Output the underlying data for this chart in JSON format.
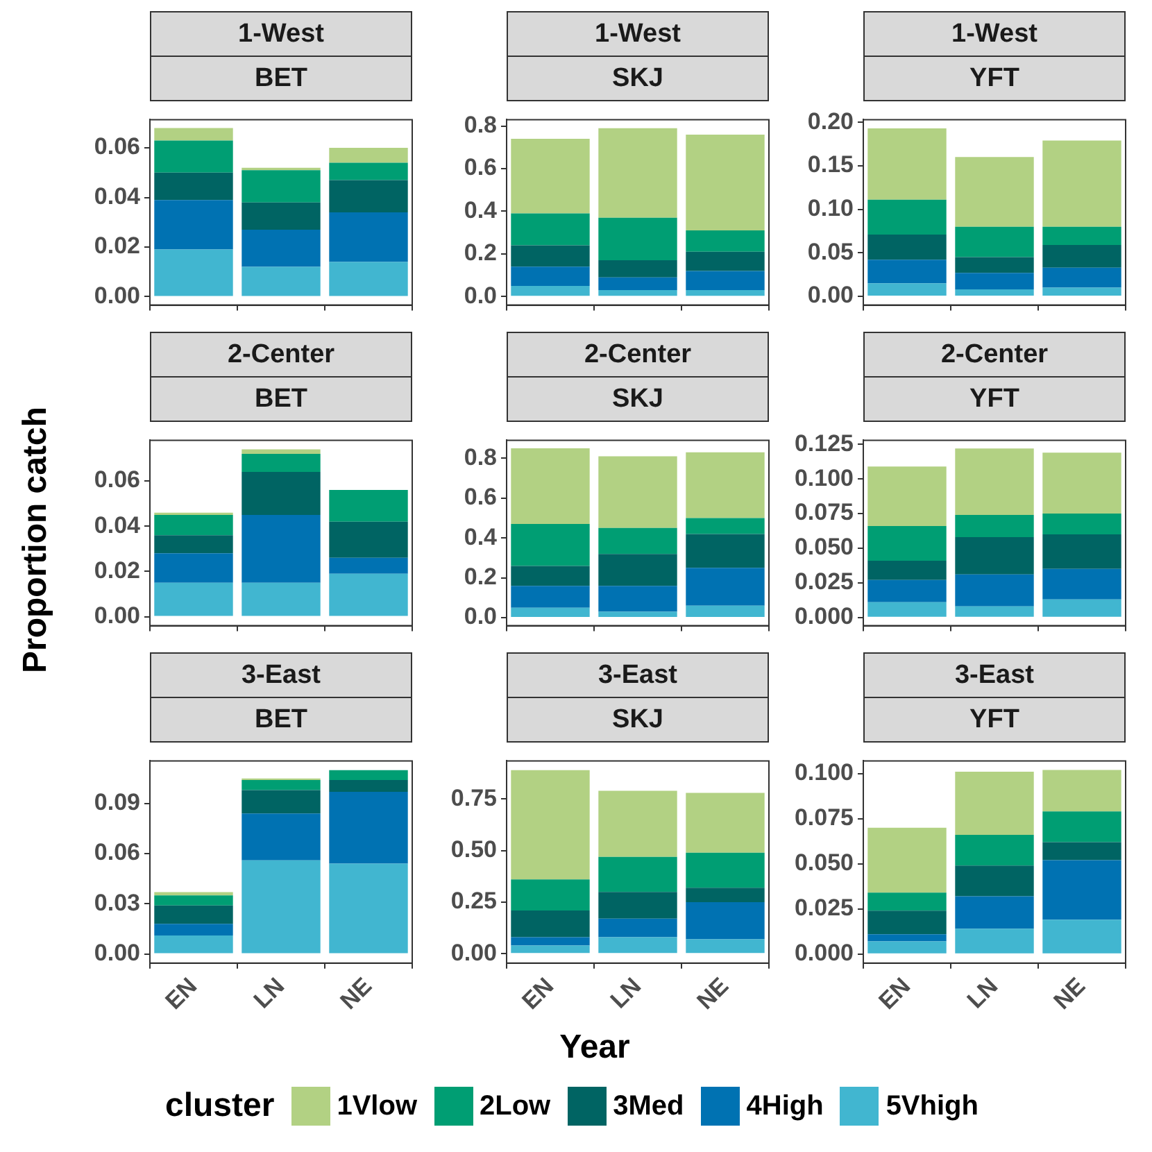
{
  "chart_data": [
    {
      "type": "bar",
      "stacked": true,
      "grid": false,
      "tick_labels": "y",
      "legend": "bottom",
      "legend_title": "cluster",
      "title": "1-West",
      "subtitle": "BET",
      "categories": [
        null,
        null,
        null
      ],
      "ylim": [
        -0.0034,
        0.0714
      ],
      "yticks": [
        {
          "value": 0,
          "label": "0.00"
        },
        0.02,
        0.04,
        0.06
      ],
      "series": [
        {
          "name": "5Vhigh",
          "color": "#41b6d0",
          "values": [
            0.019,
            0.012,
            0.014
          ]
        },
        {
          "name": "4High",
          "color": "#0072b2",
          "values": [
            0.02,
            0.015,
            0.02
          ]
        },
        {
          "name": "3Med",
          "color": "#006463",
          "values": [
            0.011,
            0.011,
            0.013
          ]
        },
        {
          "name": "2Low",
          "color": "#009e73",
          "values": [
            0.013,
            0.013,
            0.007
          ]
        },
        {
          "name": "1Vlow",
          "color": "#b2d183",
          "values": [
            0.005,
            0.001,
            0.006
          ]
        }
      ]
    },
    {
      "type": "bar",
      "stacked": true,
      "grid": false,
      "tick_labels": "y",
      "title": "1-West",
      "subtitle": "SKJ",
      "categories": [
        null,
        null,
        null
      ],
      "ylim": [
        -0.04,
        0.83
      ],
      "yticks": [
        {
          "value": 0,
          "label": "0.0"
        },
        0.2,
        0.4,
        0.6,
        0.8
      ],
      "series": [
        {
          "color": "#41b6d0",
          "values": [
            0.05,
            0.03,
            0.03
          ]
        },
        {
          "color": "#0072b2",
          "values": [
            0.09,
            0.06,
            0.09
          ]
        },
        {
          "color": "#006463",
          "values": [
            0.1,
            0.08,
            0.09
          ]
        },
        {
          "color": "#009e73",
          "values": [
            0.15,
            0.2,
            0.1
          ]
        },
        {
          "color": "#b2d183",
          "values": [
            0.35,
            0.42,
            0.45
          ]
        }
      ]
    },
    {
      "type": "bar",
      "stacked": true,
      "grid": false,
      "tick_labels": "y",
      "title": "1-West",
      "subtitle": "YFT",
      "categories": [
        null,
        null,
        null
      ],
      "ylim": [
        -0.01,
        0.203
      ],
      "yticks": [
        {
          "value": 0,
          "label": "0.00"
        },
        0.05,
        {
          "value": 0.1,
          "label": "0.10"
        },
        0.15,
        {
          "value": 0.2,
          "label": "0.20"
        }
      ],
      "series": [
        {
          "color": "#41b6d0",
          "values": [
            0.015,
            0.008,
            0.01
          ]
        },
        {
          "color": "#0072b2",
          "values": [
            0.027,
            0.019,
            0.023
          ]
        },
        {
          "color": "#006463",
          "values": [
            0.029,
            0.018,
            0.026
          ]
        },
        {
          "color": "#009e73",
          "values": [
            0.04,
            0.035,
            0.021
          ]
        },
        {
          "color": "#b2d183",
          "values": [
            0.082,
            0.08,
            0.099
          ]
        }
      ]
    },
    {
      "type": "bar",
      "stacked": true,
      "grid": false,
      "tick_labels": "y",
      "title": "2-Center",
      "subtitle": "BET",
      "ylabel": "Proportion catch",
      "categories": [
        null,
        null,
        null
      ],
      "ylim": [
        -0.004,
        0.078
      ],
      "yticks": [
        {
          "value": 0,
          "label": "0.00"
        },
        0.02,
        0.04,
        0.06
      ],
      "series": [
        {
          "color": "#41b6d0",
          "values": [
            0.015,
            0.015,
            0.019
          ]
        },
        {
          "color": "#0072b2",
          "values": [
            0.013,
            0.03,
            0.007
          ]
        },
        {
          "color": "#006463",
          "values": [
            0.008,
            0.019,
            0.016
          ]
        },
        {
          "color": "#009e73",
          "values": [
            0.009,
            0.008,
            0.014
          ]
        },
        {
          "color": "#b2d183",
          "values": [
            0.001,
            0.002,
            0
          ]
        }
      ]
    },
    {
      "type": "bar",
      "stacked": true,
      "grid": false,
      "tick_labels": "y",
      "title": "2-Center",
      "subtitle": "SKJ",
      "categories": [
        null,
        null,
        null
      ],
      "ylim": [
        -0.04,
        0.89
      ],
      "yticks": [
        {
          "value": 0,
          "label": "0.0"
        },
        0.2,
        0.4,
        0.6,
        0.8
      ],
      "series": [
        {
          "color": "#41b6d0",
          "values": [
            0.05,
            0.03,
            0.06
          ]
        },
        {
          "color": "#0072b2",
          "values": [
            0.11,
            0.13,
            0.19
          ]
        },
        {
          "color": "#006463",
          "values": [
            0.1,
            0.16,
            0.17
          ]
        },
        {
          "color": "#009e73",
          "values": [
            0.21,
            0.13,
            0.08
          ]
        },
        {
          "color": "#b2d183",
          "values": [
            0.38,
            0.36,
            0.33
          ]
        }
      ]
    },
    {
      "type": "bar",
      "stacked": true,
      "grid": false,
      "tick_labels": "y",
      "title": "2-Center",
      "subtitle": "YFT",
      "categories": [
        null,
        null,
        null
      ],
      "ylim": [
        -0.006,
        0.128
      ],
      "yticks": [
        {
          "value": 0,
          "label": "0.000"
        },
        0.025,
        {
          "value": 0.05,
          "label": "0.050"
        },
        0.075,
        {
          "value": 0.1,
          "label": "0.100"
        },
        0.125
      ],
      "series": [
        {
          "color": "#41b6d0",
          "values": [
            0.011,
            0.008,
            0.013
          ]
        },
        {
          "color": "#0072b2",
          "values": [
            0.016,
            0.023,
            0.022
          ]
        },
        {
          "color": "#006463",
          "values": [
            0.014,
            0.027,
            0.025
          ]
        },
        {
          "color": "#009e73",
          "values": [
            0.025,
            0.016,
            0.015
          ]
        },
        {
          "color": "#b2d183",
          "values": [
            0.043,
            0.048,
            0.044
          ]
        }
      ]
    },
    {
      "type": "bar",
      "stacked": true,
      "grid": false,
      "title": "3-East",
      "subtitle": "BET",
      "categories": [
        "EN",
        "LN",
        "NE"
      ],
      "ylim": [
        -0.0055,
        0.1155
      ],
      "yticks": [
        {
          "value": 0,
          "label": "0.00"
        },
        0.03,
        0.06,
        0.09
      ],
      "series": [
        {
          "color": "#41b6d0",
          "values": [
            0.011,
            0.056,
            0.054
          ]
        },
        {
          "color": "#0072b2",
          "values": [
            0.007,
            0.028,
            0.043
          ]
        },
        {
          "color": "#006463",
          "values": [
            0.011,
            0.014,
            0.007
          ]
        },
        {
          "color": "#009e73",
          "values": [
            0.006,
            0.006,
            0.006
          ]
        },
        {
          "color": "#b2d183",
          "values": [
            0.002,
            0.001,
            0
          ]
        }
      ]
    },
    {
      "type": "bar",
      "stacked": true,
      "grid": false,
      "title": "3-East",
      "subtitle": "SKJ",
      "xlabel": "Year",
      "categories": [
        "EN",
        "LN",
        "NE"
      ],
      "ylim": [
        -0.045,
        0.935
      ],
      "yticks": [
        {
          "value": 0,
          "label": "0.00"
        },
        0.25,
        {
          "value": 0.5,
          "label": "0.50"
        },
        0.75
      ],
      "series": [
        {
          "color": "#41b6d0",
          "values": [
            0.04,
            0.08,
            0.07
          ]
        },
        {
          "color": "#0072b2",
          "values": [
            0.04,
            0.09,
            0.18
          ]
        },
        {
          "color": "#006463",
          "values": [
            0.13,
            0.13,
            0.07
          ]
        },
        {
          "color": "#009e73",
          "values": [
            0.15,
            0.17,
            0.17
          ]
        },
        {
          "color": "#b2d183",
          "values": [
            0.53,
            0.32,
            0.29
          ]
        }
      ]
    },
    {
      "type": "bar",
      "stacked": true,
      "grid": false,
      "title": "3-East",
      "subtitle": "YFT",
      "categories": [
        "EN",
        "LN",
        "NE"
      ],
      "ylim": [
        -0.005,
        0.107
      ],
      "yticks": [
        {
          "value": 0,
          "label": "0.000"
        },
        0.025,
        {
          "value": 0.05,
          "label": "0.050"
        },
        0.075,
        {
          "value": 0.1,
          "label": "0.100"
        }
      ],
      "series": [
        {
          "color": "#41b6d0",
          "values": [
            0.007,
            0.014,
            0.019
          ]
        },
        {
          "color": "#0072b2",
          "values": [
            0.004,
            0.018,
            0.033
          ]
        },
        {
          "color": "#006463",
          "values": [
            0.013,
            0.017,
            0.01
          ]
        },
        {
          "color": "#009e73",
          "values": [
            0.01,
            0.017,
            0.017
          ]
        },
        {
          "color": "#b2d183",
          "values": [
            0.036,
            0.035,
            0.023
          ]
        }
      ]
    }
  ]
}
